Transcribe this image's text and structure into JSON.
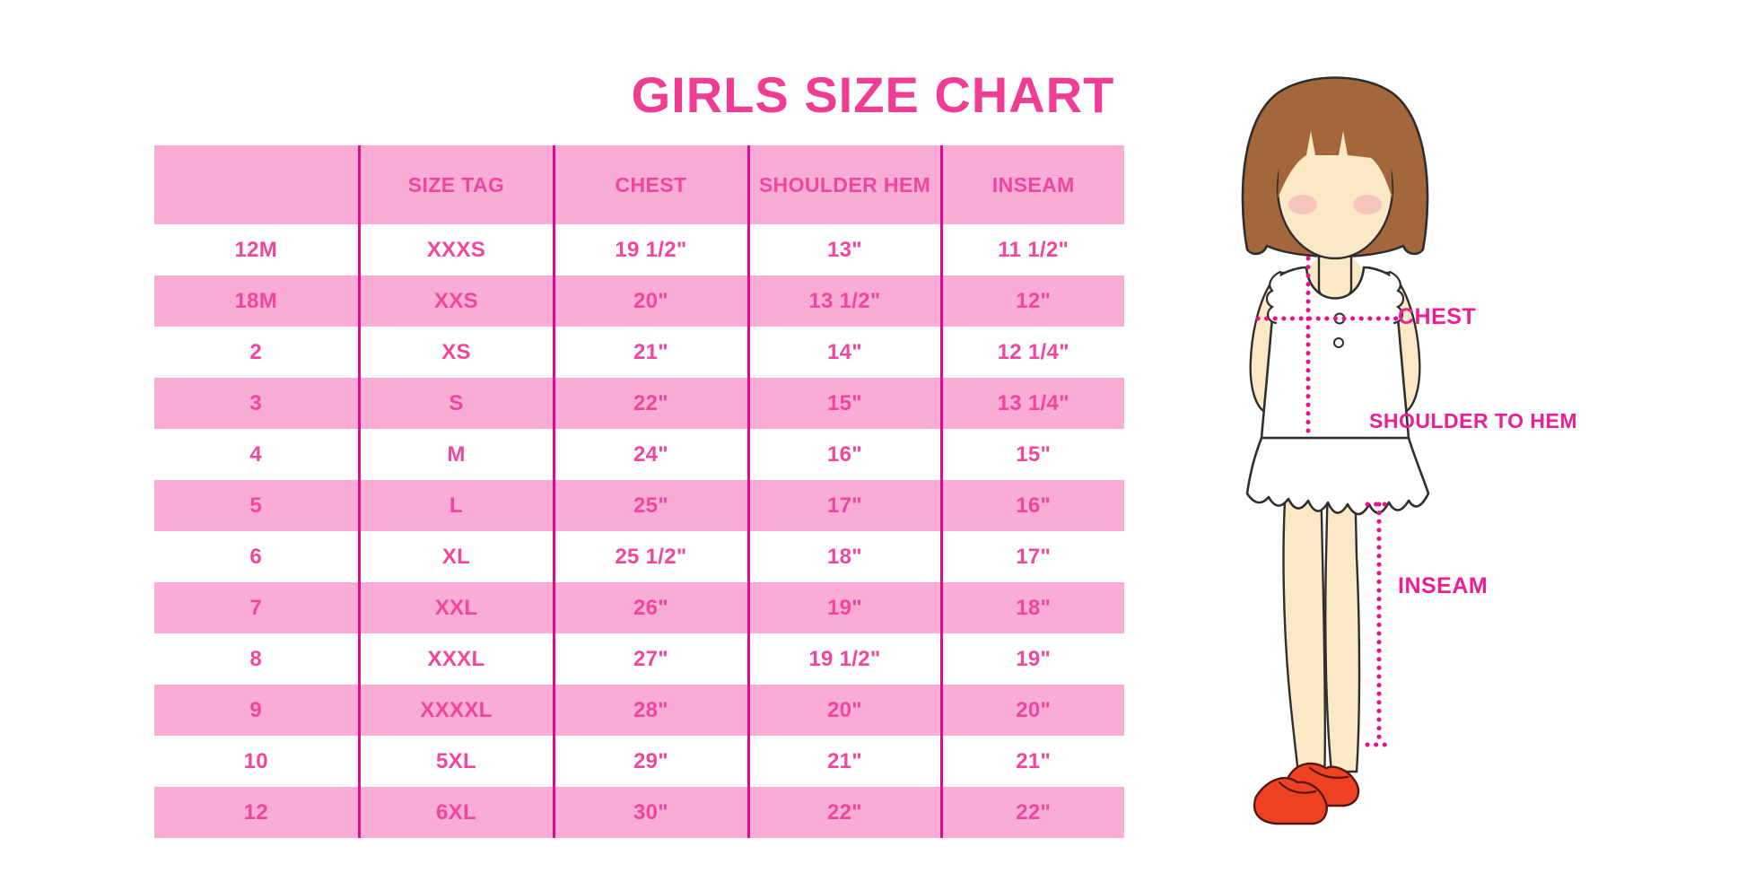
{
  "title": "GIRLS SIZE CHART",
  "colors": {
    "title_pink": "#F03D94",
    "row_pink": "#F9ADD6",
    "divider_magenta": "#E10A8C",
    "cell_text_pink": "#F2459E",
    "label_magenta": "#ED1E96",
    "dotted_line": "#EC0C8C",
    "hair_brown": "#A3673B",
    "skin": "#FBE9C6",
    "shoe_red": "#EF4123"
  },
  "chart_data": {
    "type": "table",
    "title": "GIRLS SIZE CHART",
    "columns": [
      "",
      "SIZE TAG",
      "CHEST",
      "SHOULDER HEM",
      "INSEAM"
    ],
    "rows": [
      [
        "12M",
        "XXXS",
        "19 1/2\"",
        "13\"",
        "11 1/2\""
      ],
      [
        "18M",
        "XXS",
        "20\"",
        "13 1/2\"",
        "12\""
      ],
      [
        "2",
        "XS",
        "21\"",
        "14\"",
        "12 1/4\""
      ],
      [
        "3",
        "S",
        "22\"",
        "15\"",
        "13 1/4\""
      ],
      [
        "4",
        "M",
        "24\"",
        "16\"",
        "15\""
      ],
      [
        "5",
        "L",
        "25\"",
        "17\"",
        "16\""
      ],
      [
        "6",
        "XL",
        "25 1/2\"",
        "18\"",
        "17\""
      ],
      [
        "7",
        "XXL",
        "26\"",
        "19\"",
        "18\""
      ],
      [
        "8",
        "XXXL",
        "27\"",
        "19 1/2\"",
        "19\""
      ],
      [
        "9",
        "XXXXL",
        "28\"",
        "20\"",
        "20\""
      ],
      [
        "10",
        "5XL",
        "29\"",
        "21\"",
        "21\""
      ],
      [
        "12",
        "6XL",
        "30\"",
        "22\"",
        "22\""
      ]
    ]
  },
  "figure": {
    "chest_label": "CHEST",
    "shoulder_hem_label": "SHOULDER TO HEM",
    "inseam_label": "INSEAM"
  }
}
